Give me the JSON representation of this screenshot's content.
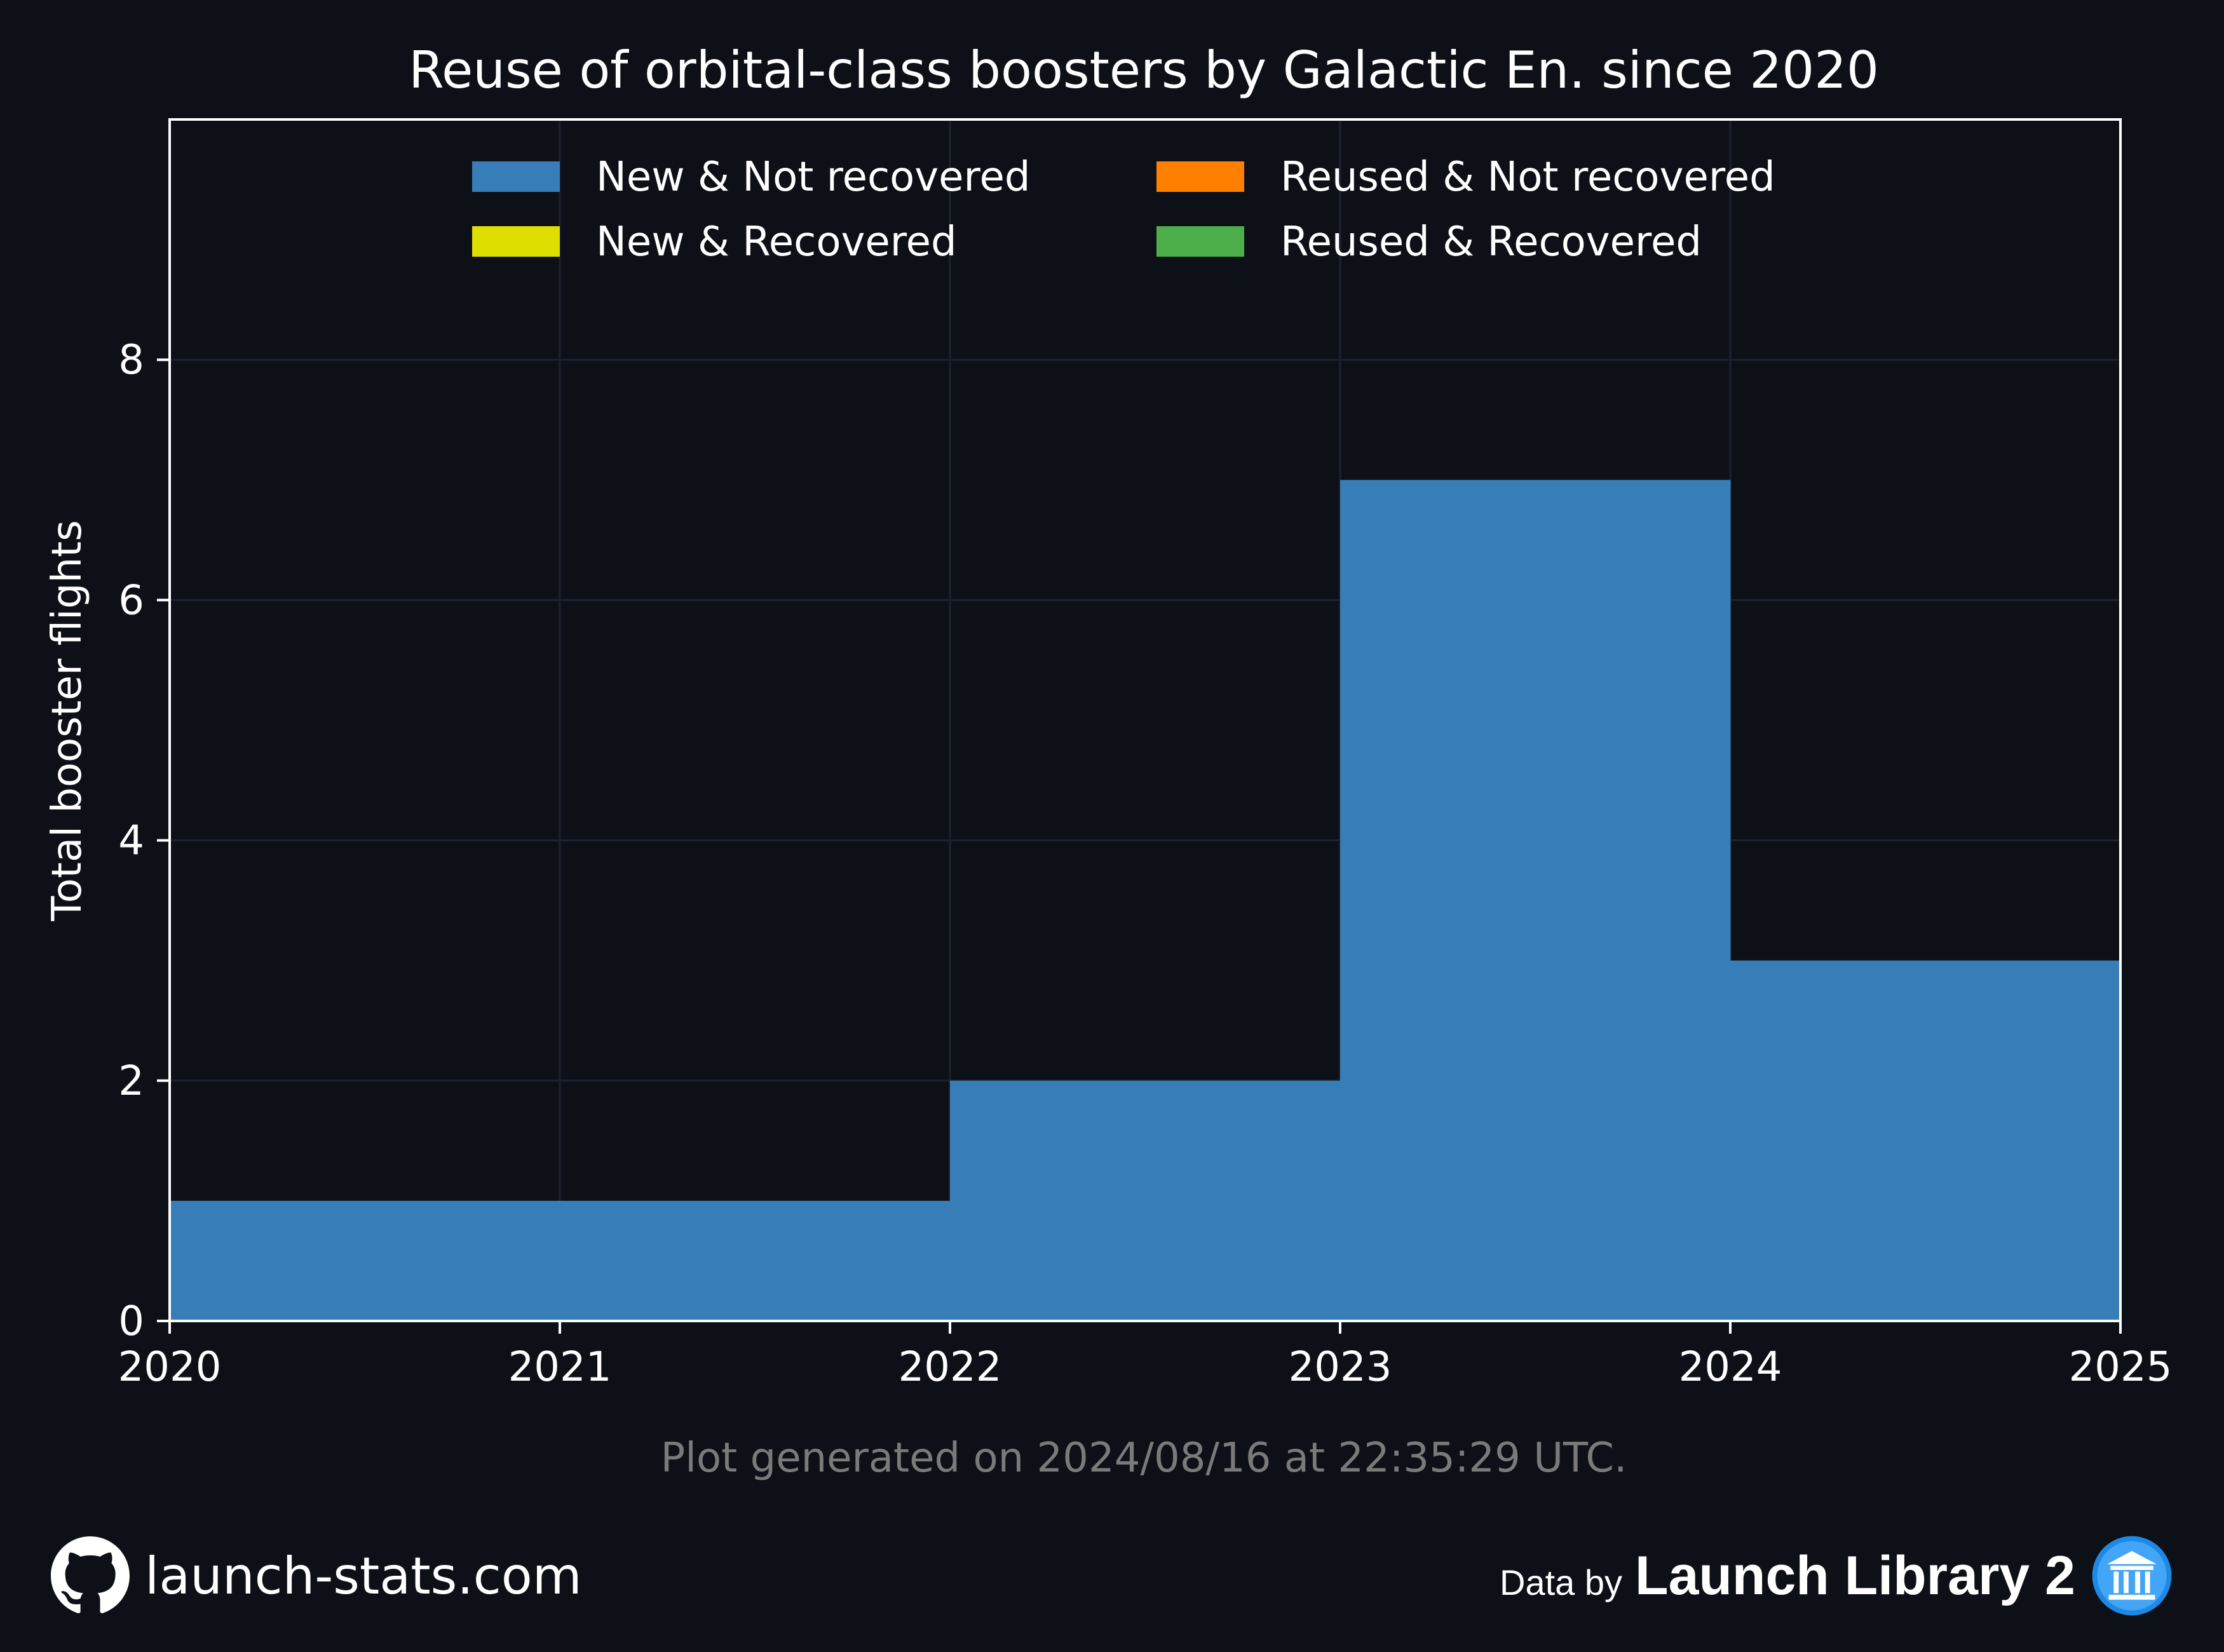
{
  "chart_data": {
    "type": "area",
    "title": "Reuse of orbital-class boosters by Galactic En. since 2020",
    "xlabel": "",
    "ylabel": "Total booster flights",
    "x_edges": [
      2020,
      2021,
      2022,
      2023,
      2024,
      2025
    ],
    "x_ticks": [
      "2020",
      "2021",
      "2022",
      "2023",
      "2024",
      "2025"
    ],
    "y_ticks": [
      "0",
      "2",
      "4",
      "6",
      "8"
    ],
    "xlim": [
      2020,
      2025
    ],
    "ylim": [
      0,
      10
    ],
    "grid": true,
    "legend_position": "top",
    "series": [
      {
        "name": "New & Not recovered",
        "color": "#377eb8",
        "values": [
          1,
          1,
          2,
          7,
          3
        ]
      },
      {
        "name": "New & Recovered",
        "color": "#dede00",
        "values": [
          0,
          0,
          0,
          0,
          0
        ]
      },
      {
        "name": "Reused & Not recovered",
        "color": "#ff7f00",
        "values": [
          0,
          0,
          0,
          0,
          0
        ]
      },
      {
        "name": "Reused & Recovered",
        "color": "#4daf4a",
        "values": [
          0,
          0,
          0,
          0,
          0
        ]
      }
    ]
  },
  "footnote": "Plot generated on 2024/08/16 at 22:35:29 UTC.",
  "footer": {
    "site": "launch-stats.com",
    "github_icon": "github-icon",
    "data_by": "Data by",
    "source": "Launch Library 2",
    "source_icon": "library-icon"
  },
  "colors": {
    "background": "#0d1017",
    "text": "#ffffff",
    "grid": "#1c2230",
    "footnote": "#7a7a7a"
  }
}
